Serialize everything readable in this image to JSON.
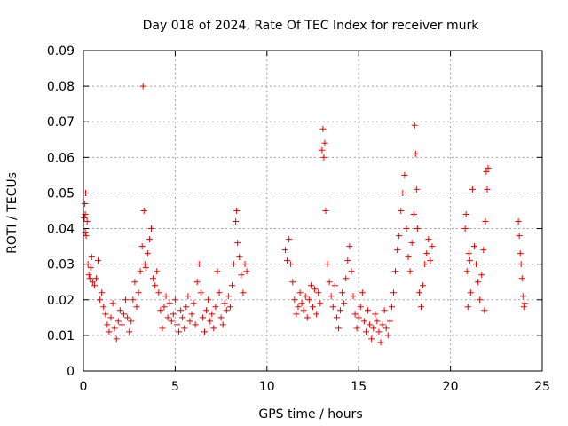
{
  "chart_data": {
    "type": "scatter",
    "title": "Day 018 of 2024, Rate Of TEC Index for receiver murk",
    "xlabel": "GPS time / hours",
    "ylabel": "ROTI / TECUs",
    "xlim": [
      0,
      25
    ],
    "ylim": [
      0,
      0.09
    ],
    "x_ticks": [
      "0",
      "5",
      "10",
      "15",
      "20",
      "25"
    ],
    "y_ticks": [
      "0",
      "0.01",
      "0.02",
      "0.03",
      "0.04",
      "0.05",
      "0.06",
      "0.07",
      "0.08",
      "0.09"
    ],
    "grid": true,
    "marker": "plus",
    "color": "#ee0000",
    "series": [
      {
        "points": [
          [
            0.05,
            0.043
          ],
          [
            0.1,
            0.044
          ],
          [
            0.12,
            0.05
          ],
          [
            0.08,
            0.047
          ],
          [
            0.1,
            0.039
          ],
          [
            0.15,
            0.038
          ],
          [
            0.2,
            0.042
          ],
          [
            0.25,
            0.03
          ],
          [
            0.3,
            0.027
          ],
          [
            0.35,
            0.026
          ],
          [
            0.4,
            0.029
          ],
          [
            0.45,
            0.032
          ],
          [
            0.5,
            0.025
          ],
          [
            0.6,
            0.024
          ],
          [
            0.7,
            0.026
          ],
          [
            0.8,
            0.031
          ],
          [
            0.9,
            0.02
          ],
          [
            1.0,
            0.022
          ],
          [
            1.1,
            0.018
          ],
          [
            1.2,
            0.016
          ],
          [
            1.3,
            0.013
          ],
          [
            1.4,
            0.011
          ],
          [
            1.5,
            0.015
          ],
          [
            1.6,
            0.019
          ],
          [
            1.7,
            0.012
          ],
          [
            1.8,
            0.009
          ],
          [
            1.9,
            0.014
          ],
          [
            2.0,
            0.017
          ],
          [
            2.1,
            0.013
          ],
          [
            2.2,
            0.016
          ],
          [
            2.3,
            0.02
          ],
          [
            2.4,
            0.015
          ],
          [
            2.5,
            0.011
          ],
          [
            2.6,
            0.014
          ],
          [
            2.7,
            0.02
          ],
          [
            2.8,
            0.025
          ],
          [
            2.9,
            0.018
          ],
          [
            3.0,
            0.022
          ],
          [
            3.1,
            0.028
          ],
          [
            3.2,
            0.035
          ],
          [
            3.25,
            0.08
          ],
          [
            3.3,
            0.045
          ],
          [
            3.35,
            0.03
          ],
          [
            3.4,
            0.029
          ],
          [
            3.5,
            0.033
          ],
          [
            3.6,
            0.037
          ],
          [
            3.7,
            0.04
          ],
          [
            3.8,
            0.026
          ],
          [
            3.9,
            0.024
          ],
          [
            4.0,
            0.028
          ],
          [
            4.1,
            0.022
          ],
          [
            4.2,
            0.017
          ],
          [
            4.3,
            0.012
          ],
          [
            4.4,
            0.018
          ],
          [
            4.5,
            0.021
          ],
          [
            4.6,
            0.015
          ],
          [
            4.7,
            0.019
          ],
          [
            4.8,
            0.014
          ],
          [
            4.9,
            0.016
          ],
          [
            5.0,
            0.02
          ],
          [
            5.1,
            0.013
          ],
          [
            5.2,
            0.011
          ],
          [
            5.3,
            0.017
          ],
          [
            5.4,
            0.015
          ],
          [
            5.5,
            0.012
          ],
          [
            5.6,
            0.018
          ],
          [
            5.7,
            0.021
          ],
          [
            5.8,
            0.014
          ],
          [
            5.9,
            0.016
          ],
          [
            6.0,
            0.019
          ],
          [
            6.1,
            0.013
          ],
          [
            6.2,
            0.025
          ],
          [
            6.3,
            0.03
          ],
          [
            6.4,
            0.022
          ],
          [
            6.5,
            0.015
          ],
          [
            6.6,
            0.011
          ],
          [
            6.7,
            0.017
          ],
          [
            6.8,
            0.02
          ],
          [
            6.9,
            0.014
          ],
          [
            7.0,
            0.016
          ],
          [
            7.1,
            0.012
          ],
          [
            7.2,
            0.018
          ],
          [
            7.3,
            0.028
          ],
          [
            7.4,
            0.022
          ],
          [
            7.5,
            0.015
          ],
          [
            7.6,
            0.013
          ],
          [
            7.7,
            0.019
          ],
          [
            7.8,
            0.017
          ],
          [
            7.9,
            0.021
          ],
          [
            8.0,
            0.018
          ],
          [
            8.1,
            0.024
          ],
          [
            8.2,
            0.03
          ],
          [
            8.3,
            0.042
          ],
          [
            8.35,
            0.045
          ],
          [
            8.4,
            0.036
          ],
          [
            8.5,
            0.032
          ],
          [
            8.6,
            0.027
          ],
          [
            8.7,
            0.022
          ],
          [
            8.8,
            0.03
          ],
          [
            8.9,
            0.028
          ],
          [
            11.0,
            0.034
          ],
          [
            11.1,
            0.031
          ],
          [
            11.2,
            0.037
          ],
          [
            11.3,
            0.03
          ],
          [
            11.4,
            0.025
          ],
          [
            11.5,
            0.02
          ],
          [
            11.6,
            0.016
          ],
          [
            11.7,
            0.018
          ],
          [
            11.8,
            0.022
          ],
          [
            11.9,
            0.019
          ],
          [
            12.0,
            0.017
          ],
          [
            12.1,
            0.021
          ],
          [
            12.2,
            0.015
          ],
          [
            12.3,
            0.02
          ],
          [
            12.4,
            0.024
          ],
          [
            12.5,
            0.018
          ],
          [
            12.6,
            0.023
          ],
          [
            12.7,
            0.016
          ],
          [
            12.8,
            0.022
          ],
          [
            12.9,
            0.019
          ],
          [
            13.0,
            0.062
          ],
          [
            13.05,
            0.068
          ],
          [
            13.1,
            0.06
          ],
          [
            13.15,
            0.064
          ],
          [
            13.2,
            0.045
          ],
          [
            13.3,
            0.03
          ],
          [
            13.4,
            0.025
          ],
          [
            13.5,
            0.021
          ],
          [
            13.6,
            0.018
          ],
          [
            13.7,
            0.024
          ],
          [
            13.8,
            0.015
          ],
          [
            13.9,
            0.012
          ],
          [
            14.0,
            0.017
          ],
          [
            14.1,
            0.022
          ],
          [
            14.2,
            0.019
          ],
          [
            14.3,
            0.026
          ],
          [
            14.4,
            0.031
          ],
          [
            14.5,
            0.035
          ],
          [
            14.6,
            0.028
          ],
          [
            14.7,
            0.021
          ],
          [
            14.8,
            0.016
          ],
          [
            14.9,
            0.012
          ],
          [
            15.0,
            0.015
          ],
          [
            15.1,
            0.018
          ],
          [
            15.2,
            0.022
          ],
          [
            15.3,
            0.014
          ],
          [
            15.4,
            0.011
          ],
          [
            15.5,
            0.017
          ],
          [
            15.6,
            0.013
          ],
          [
            15.7,
            0.009
          ],
          [
            15.8,
            0.012
          ],
          [
            15.9,
            0.016
          ],
          [
            16.0,
            0.014
          ],
          [
            16.1,
            0.011
          ],
          [
            16.2,
            0.008
          ],
          [
            16.3,
            0.013
          ],
          [
            16.4,
            0.017
          ],
          [
            16.5,
            0.012
          ],
          [
            16.6,
            0.01
          ],
          [
            16.7,
            0.014
          ],
          [
            16.8,
            0.018
          ],
          [
            16.9,
            0.022
          ],
          [
            17.0,
            0.028
          ],
          [
            17.1,
            0.034
          ],
          [
            17.2,
            0.038
          ],
          [
            17.3,
            0.045
          ],
          [
            17.4,
            0.05
          ],
          [
            17.5,
            0.055
          ],
          [
            17.6,
            0.04
          ],
          [
            17.7,
            0.032
          ],
          [
            17.8,
            0.028
          ],
          [
            17.9,
            0.036
          ],
          [
            18.0,
            0.044
          ],
          [
            18.05,
            0.069
          ],
          [
            18.1,
            0.061
          ],
          [
            18.15,
            0.051
          ],
          [
            18.2,
            0.04
          ],
          [
            18.3,
            0.022
          ],
          [
            18.4,
            0.018
          ],
          [
            18.5,
            0.024
          ],
          [
            18.6,
            0.03
          ],
          [
            18.7,
            0.033
          ],
          [
            18.8,
            0.037
          ],
          [
            18.9,
            0.031
          ],
          [
            19.0,
            0.035
          ],
          [
            20.8,
            0.04
          ],
          [
            20.85,
            0.044
          ],
          [
            20.9,
            0.028
          ],
          [
            20.95,
            0.018
          ],
          [
            21.0,
            0.033
          ],
          [
            21.05,
            0.031
          ],
          [
            21.1,
            0.022
          ],
          [
            21.2,
            0.051
          ],
          [
            21.3,
            0.035
          ],
          [
            21.4,
            0.03
          ],
          [
            21.5,
            0.025
          ],
          [
            21.6,
            0.02
          ],
          [
            21.7,
            0.027
          ],
          [
            21.8,
            0.034
          ],
          [
            21.85,
            0.017
          ],
          [
            21.9,
            0.042
          ],
          [
            21.95,
            0.056
          ],
          [
            22.0,
            0.051
          ],
          [
            22.05,
            0.057
          ],
          [
            23.7,
            0.042
          ],
          [
            23.75,
            0.038
          ],
          [
            23.8,
            0.033
          ],
          [
            23.85,
            0.03
          ],
          [
            23.9,
            0.026
          ],
          [
            23.95,
            0.021
          ],
          [
            24.0,
            0.018
          ],
          [
            24.05,
            0.019
          ]
        ]
      }
    ]
  }
}
